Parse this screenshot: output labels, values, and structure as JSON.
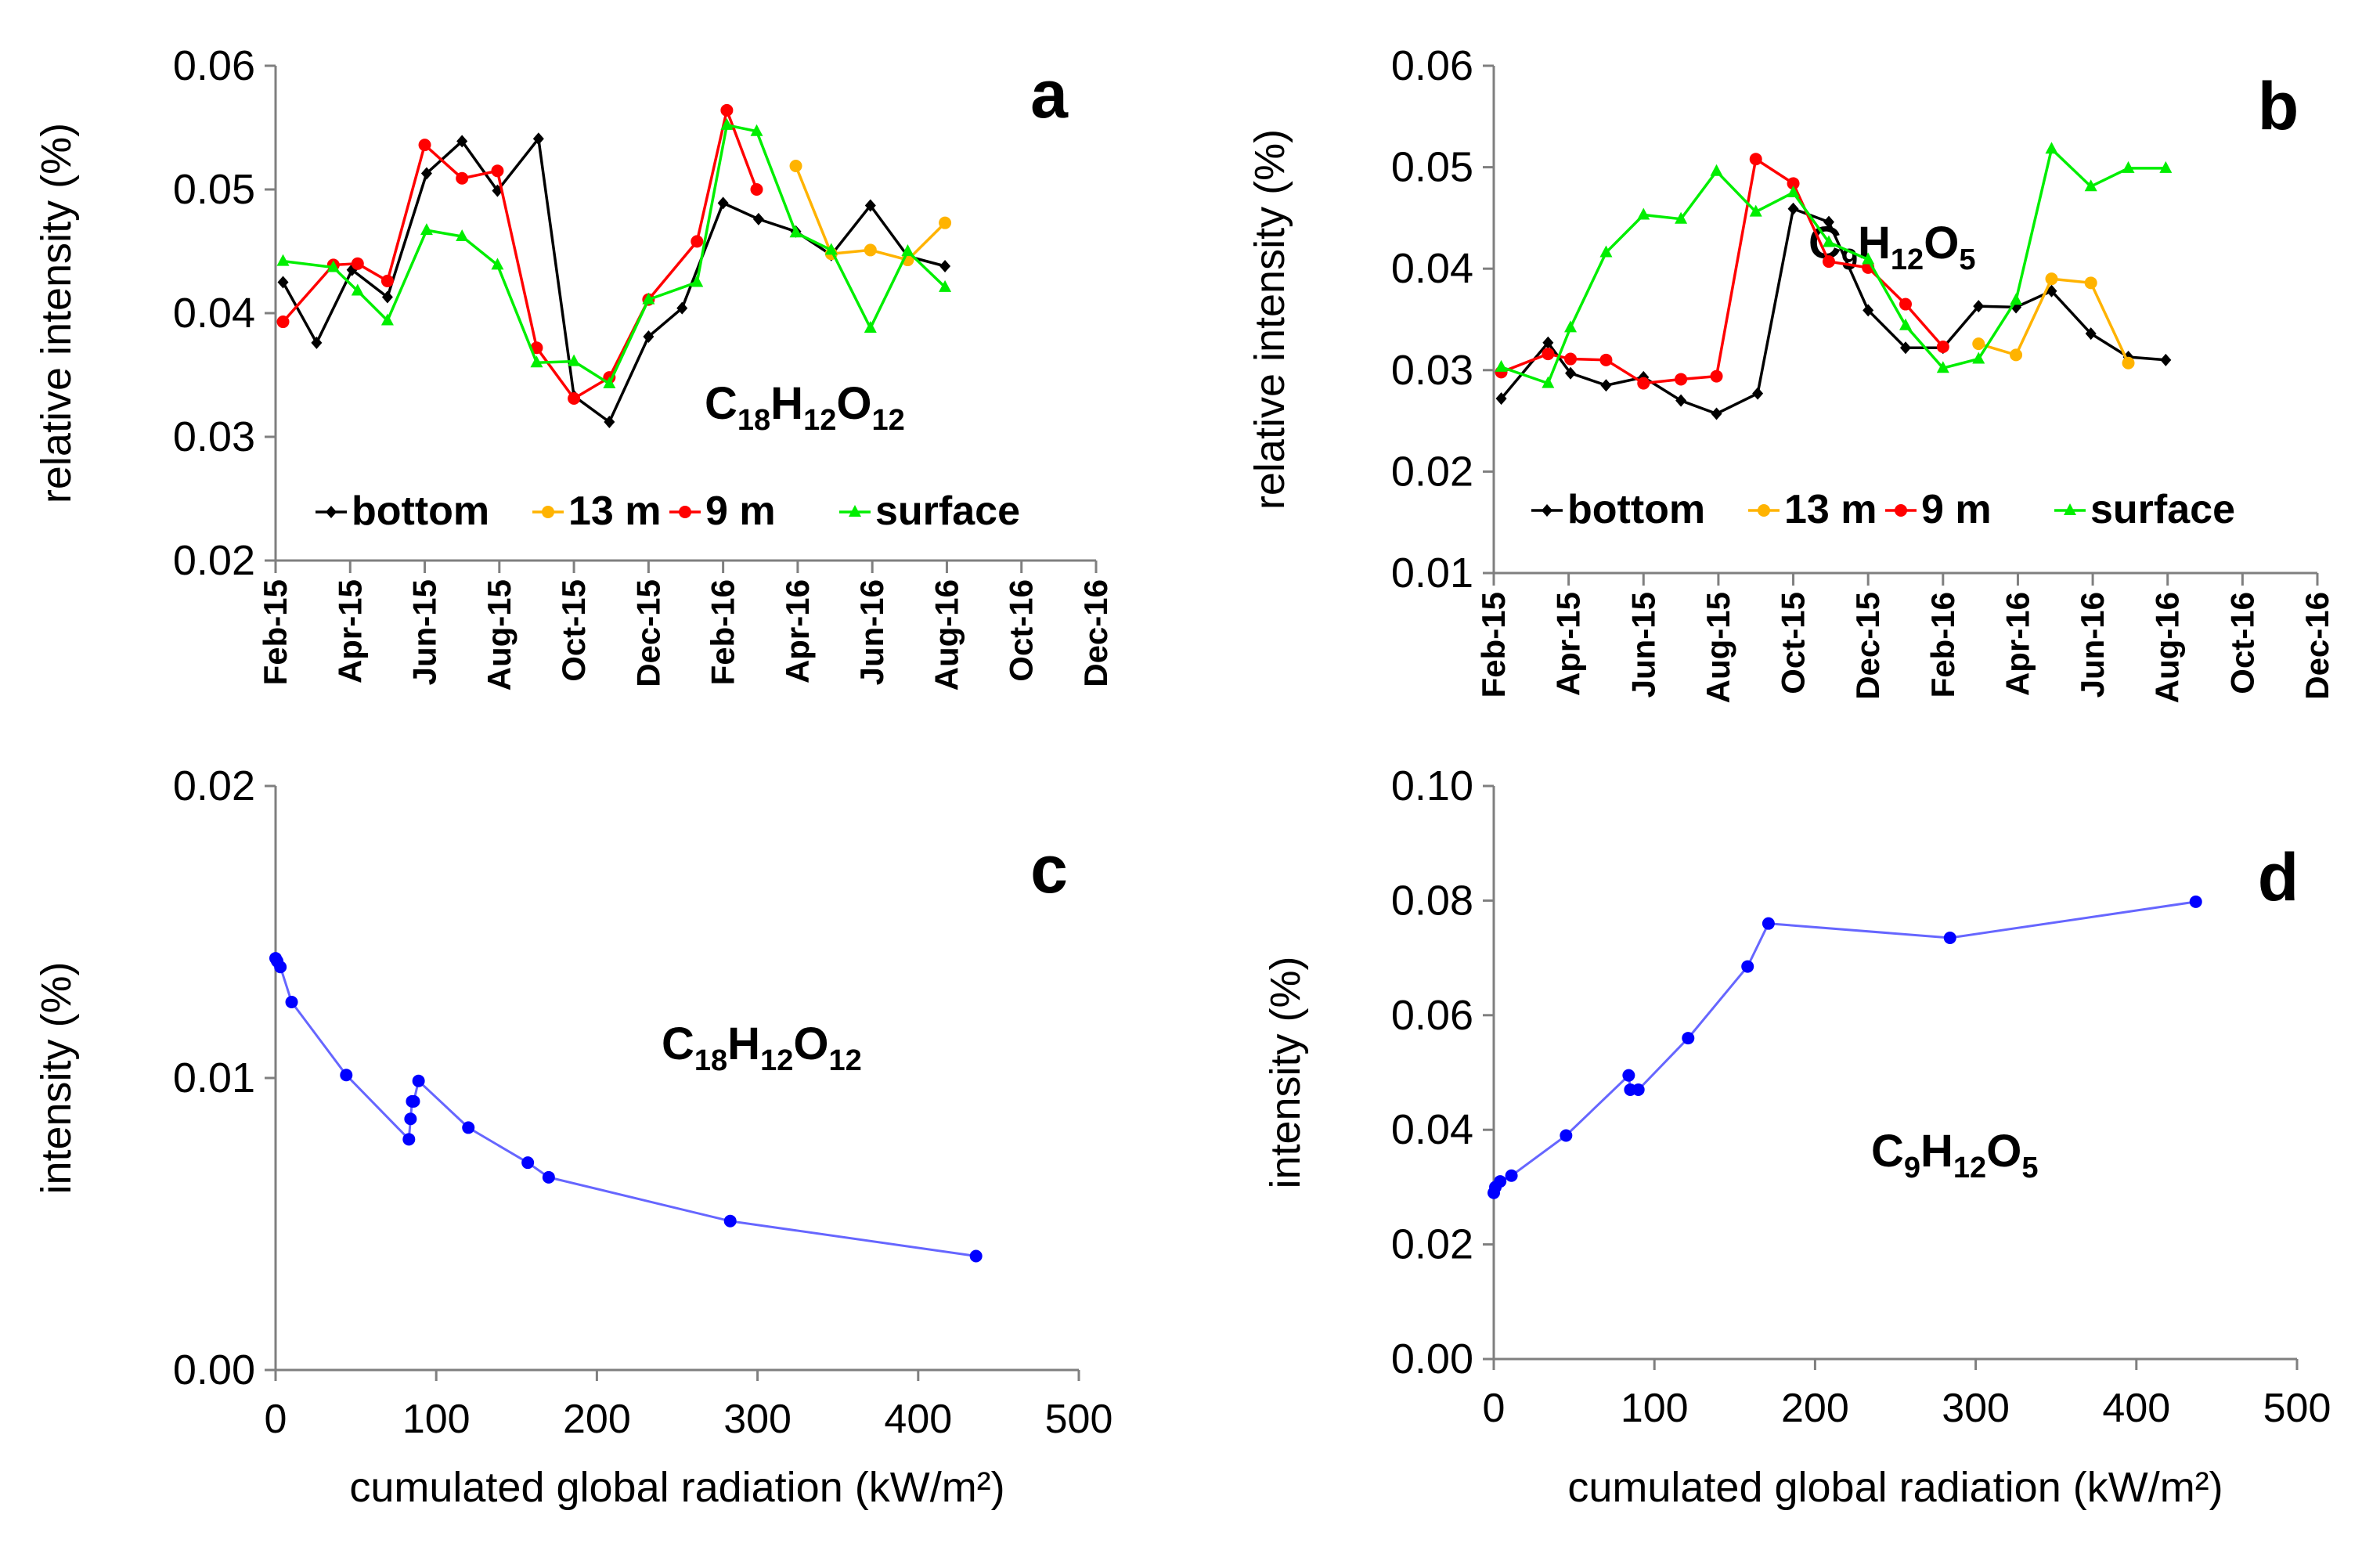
{
  "colors": {
    "bottom": "#000000",
    "m13": "#FFB300",
    "m9": "#FF0000",
    "surface": "#00EE00",
    "radiation": "#0000FF",
    "line_radiation": "#6666FF",
    "axis": "#7f7f7f"
  },
  "chart_data": [
    {
      "panel": "a",
      "type": "line",
      "formula": {
        "base": "C",
        "s1": "18",
        "mid": "H",
        "s2": "12",
        "end": "O",
        "s3": "12"
      },
      "ylabel": "relative intensity (%)",
      "ylim": [
        0.02,
        0.06
      ],
      "yticks": [
        "0.02",
        "0.03",
        "0.04",
        "0.05",
        "0.06"
      ],
      "xticks": [
        "Feb-15",
        "Apr-15",
        "Jun-15",
        "Aug-15",
        "Oct-15",
        "Dec-15",
        "Feb-16",
        "Apr-16",
        "Jun-16",
        "Aug-16",
        "Oct-16",
        "Dec-16"
      ],
      "x_unit": "months since Feb-15",
      "xlim": [
        0,
        22
      ],
      "legend": [
        "bottom",
        "13 m",
        "9 m",
        "surface"
      ],
      "series": [
        {
          "name": "bottom",
          "key": "bottom",
          "marker": "diamond",
          "x": [
            0.2,
            1.1,
            2.05,
            3.0,
            4.05,
            5.0,
            5.95,
            7.05,
            8.0,
            8.95,
            10.0,
            10.9,
            12.0,
            12.95,
            13.95,
            14.9,
            15.95,
            16.95,
            17.95
          ],
          "y": [
            0.0425,
            0.0376,
            0.0435,
            0.0413,
            0.0513,
            0.0539,
            0.0499,
            0.0541,
            0.0333,
            0.0312,
            0.0381,
            0.0404,
            0.0489,
            0.0476,
            0.0466,
            0.0447,
            0.0487,
            0.0446,
            0.0438
          ]
        },
        {
          "name": "13 m",
          "key": "m13",
          "marker": "circle",
          "x": [
            13.95,
            14.9,
            15.95,
            16.95,
            17.95
          ],
          "y": [
            0.0519,
            0.0448,
            0.0451,
            0.0443,
            0.0473
          ]
        },
        {
          "name": "9 m",
          "key": "m9",
          "marker": "circle",
          "x": [
            0.2,
            1.55,
            2.2,
            3.0,
            4.0,
            5.0,
            5.95,
            7.0,
            8.0,
            8.95,
            10.0,
            11.3,
            12.1,
            12.9
          ],
          "y": [
            0.0393,
            0.0439,
            0.044,
            0.0426,
            0.0536,
            0.0509,
            0.0515,
            0.0372,
            0.0331,
            0.0348,
            0.0411,
            0.0458,
            0.0564,
            0.05
          ]
        },
        {
          "name": "surface",
          "key": "surface",
          "marker": "triangle",
          "x": [
            0.2,
            1.55,
            2.2,
            3.0,
            4.05,
            5.0,
            5.95,
            7.0,
            8.0,
            8.95,
            10.0,
            11.3,
            12.1,
            12.9,
            13.95,
            14.9,
            15.95,
            16.95,
            17.95
          ],
          "y": [
            0.0442,
            0.0437,
            0.0418,
            0.0394,
            0.0467,
            0.0462,
            0.0439,
            0.036,
            0.0361,
            0.0343,
            0.0411,
            0.0425,
            0.0552,
            0.0547,
            0.0465,
            0.0451,
            0.0388,
            0.045,
            0.0421
          ]
        }
      ]
    },
    {
      "panel": "b",
      "type": "line",
      "formula": {
        "base": "C",
        "s1": "9",
        "mid": "H",
        "s2": "12",
        "end": "O",
        "s3": "5"
      },
      "ylabel": "relative intensity (%)",
      "ylim": [
        0.01,
        0.06
      ],
      "yticks": [
        "0.01",
        "0.02",
        "0.03",
        "0.04",
        "0.05",
        "0.06"
      ],
      "xticks": [
        "Feb-15",
        "Apr-15",
        "Jun-15",
        "Aug-15",
        "Oct-15",
        "Dec-15",
        "Feb-16",
        "Apr-16",
        "Jun-16",
        "Aug-16",
        "Oct-16",
        "Dec-16"
      ],
      "x_unit": "months since Feb-15",
      "xlim": [
        0,
        22
      ],
      "legend": [
        "bottom",
        "13 m",
        "9 m",
        "surface"
      ],
      "series": [
        {
          "name": "bottom",
          "key": "bottom",
          "marker": "diamond",
          "x": [
            0.2,
            1.45,
            2.05,
            3.0,
            4.0,
            5.0,
            5.95,
            7.05,
            8.0,
            8.95,
            10.0,
            11.0,
            12.0,
            12.95,
            13.95,
            14.9,
            15.95,
            16.95,
            17.95
          ],
          "y": [
            0.0272,
            0.0327,
            0.0297,
            0.0285,
            0.0293,
            0.027,
            0.0257,
            0.0277,
            0.0459,
            0.0446,
            0.0359,
            0.0322,
            0.0322,
            0.0363,
            0.0362,
            0.0378,
            0.0336,
            0.0313,
            0.031
          ]
        },
        {
          "name": "13 m",
          "key": "m13",
          "marker": "circle",
          "x": [
            12.95,
            13.95,
            14.9,
            15.95,
            16.95
          ],
          "y": [
            0.0326,
            0.0315,
            0.039,
            0.0386,
            0.0307
          ]
        },
        {
          "name": "9 m",
          "key": "m9",
          "marker": "circle",
          "x": [
            0.2,
            1.45,
            2.05,
            3.0,
            4.0,
            5.0,
            5.95,
            7.0,
            8.0,
            8.95,
            10.0,
            11.0,
            12.0
          ],
          "y": [
            0.0298,
            0.0316,
            0.0311,
            0.031,
            0.0287,
            0.0291,
            0.0294,
            0.0508,
            0.0484,
            0.0407,
            0.0401,
            0.0365,
            0.0323
          ]
        },
        {
          "name": "surface",
          "key": "surface",
          "marker": "triangle",
          "x": [
            0.2,
            1.45,
            2.05,
            3.0,
            4.0,
            5.0,
            5.95,
            7.0,
            8.0,
            8.95,
            10.0,
            11.0,
            12.0,
            12.95,
            13.95,
            14.9,
            15.95,
            16.95,
            17.95
          ],
          "y": [
            0.0303,
            0.0287,
            0.0342,
            0.0416,
            0.0453,
            0.0449,
            0.0496,
            0.0456,
            0.0475,
            0.0426,
            0.0409,
            0.0344,
            0.0302,
            0.0311,
            0.0369,
            0.0518,
            0.0481,
            0.0499,
            0.0499
          ]
        }
      ]
    },
    {
      "panel": "c",
      "type": "scatter",
      "formula": {
        "base": "C",
        "s1": "18",
        "mid": "H",
        "s2": "12",
        "end": "O",
        "s3": "12"
      },
      "xlabel": "cumulated global radiation (kW/m²)",
      "ylabel": "intensity (%)",
      "xlim": [
        0,
        500
      ],
      "ylim": [
        0,
        0.02
      ],
      "xticks": [
        "0",
        "100",
        "200",
        "300",
        "400",
        "500"
      ],
      "yticks": [
        "0.00",
        "0.01",
        "0.02"
      ],
      "series": [
        {
          "name": "intensity",
          "key": "radiation",
          "x": [
            0,
            1,
            3,
            10,
            44,
            83,
            84,
            85,
            86,
            89,
            120,
            157,
            170,
            283,
            436
          ],
          "y": [
            0.0141,
            0.014,
            0.0138,
            0.0126,
            0.0101,
            0.0079,
            0.0086,
            0.0092,
            0.0092,
            0.0099,
            0.0083,
            0.0071,
            0.0066,
            0.0051,
            0.0039
          ]
        }
      ]
    },
    {
      "panel": "d",
      "type": "scatter",
      "formula": {
        "base": "C",
        "s1": "9",
        "mid": "H",
        "s2": "12",
        "end": "O",
        "s3": "5"
      },
      "xlabel": "cumulated global radiation (kW/m²)",
      "ylabel": "intensity (%)",
      "xlim": [
        0,
        500
      ],
      "ylim": [
        0,
        0.1
      ],
      "xticks": [
        "0",
        "100",
        "200",
        "300",
        "400",
        "500"
      ],
      "yticks": [
        "0.00",
        "0.02",
        "0.04",
        "0.06",
        "0.08",
        "0.10"
      ],
      "series": [
        {
          "name": "intensity",
          "key": "radiation",
          "x": [
            0,
            1,
            4,
            11,
            45,
            84,
            85,
            90,
            121,
            158,
            171,
            284,
            437
          ],
          "y": [
            0.029,
            0.03,
            0.031,
            0.032,
            0.039,
            0.0495,
            0.047,
            0.047,
            0.056,
            0.0685,
            0.076,
            0.0735,
            0.0798
          ]
        }
      ]
    }
  ]
}
